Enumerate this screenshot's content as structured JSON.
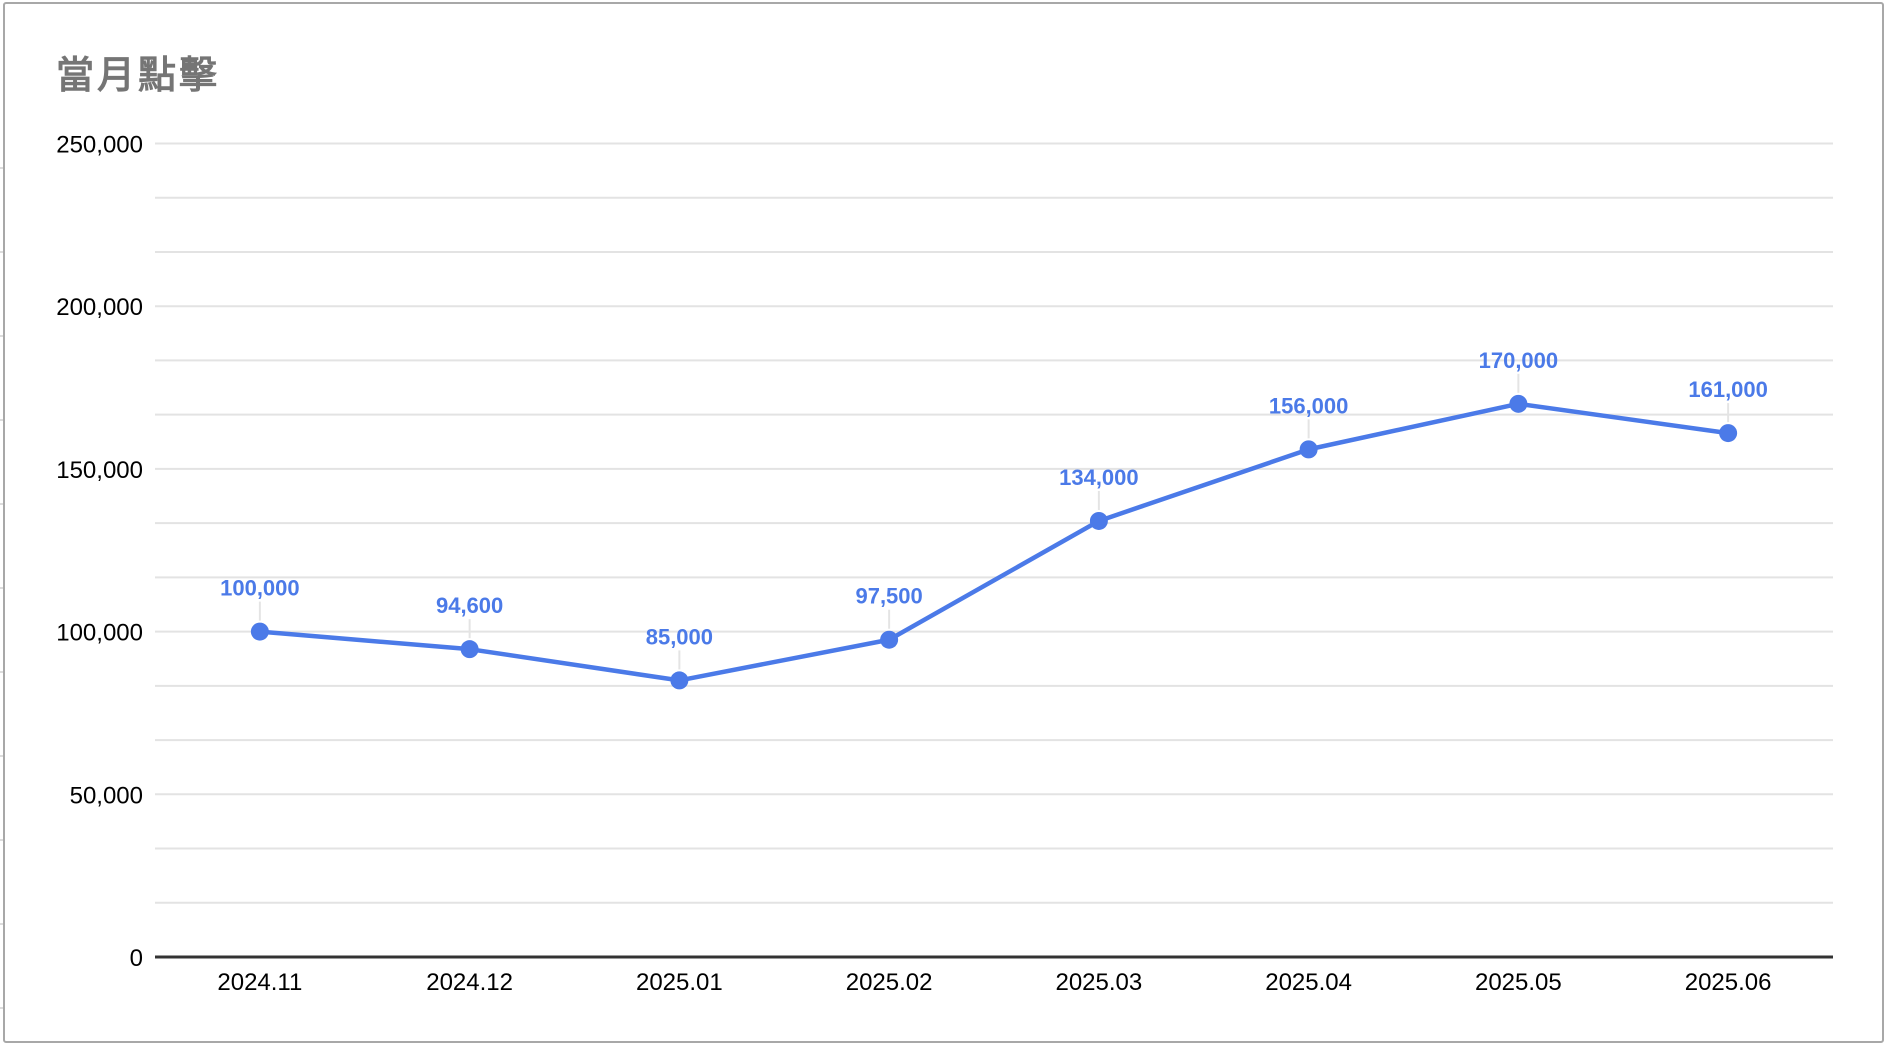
{
  "chart": {
    "title": "當月點擊"
  },
  "chart_data": {
    "type": "line",
    "title": "當月點擊",
    "categories": [
      "2024.11",
      "2024.12",
      "2025.01",
      "2025.02",
      "2025.03",
      "2025.04",
      "2025.05",
      "2025.06"
    ],
    "series": [
      {
        "name": "當月點擊",
        "values": [
          100000,
          94600,
          85000,
          97500,
          134000,
          156000,
          170000,
          161000
        ],
        "labels": [
          "100,000",
          "94,600",
          "85,000",
          "97,500",
          "134,000",
          "156,000",
          "170,000",
          "161,000"
        ]
      }
    ],
    "ylim": [
      0,
      250000
    ],
    "y_ticks": [
      {
        "value": 0,
        "label": "0"
      },
      {
        "value": 50000,
        "label": "50,000"
      },
      {
        "value": 100000,
        "label": "100,000"
      },
      {
        "value": 150000,
        "label": "150,000"
      },
      {
        "value": 200000,
        "label": "200,000"
      },
      {
        "value": 250000,
        "label": "250,000"
      }
    ],
    "grid": {
      "direction": "horizontal",
      "minor_lines_between_major": 2
    },
    "legend": "none",
    "colors": {
      "series": "#4b7ae8",
      "title": "#757575",
      "axis_text": "#000000",
      "gridline": "#e3e3e3",
      "baseline": "#333333",
      "leader_line": "#e4e4e4",
      "frame_border": "#a8a8a8",
      "background": "#ffffff"
    }
  }
}
